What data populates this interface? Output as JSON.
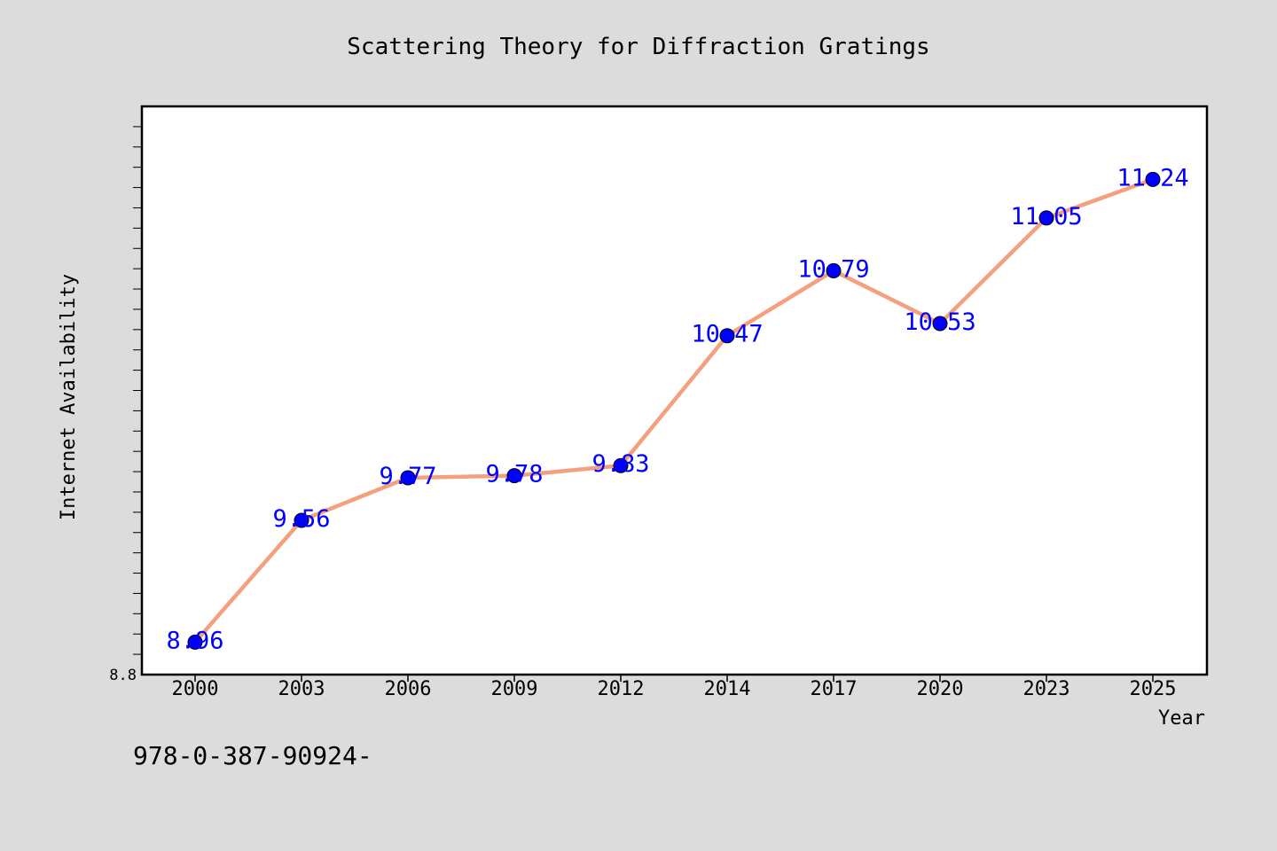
{
  "chart_data": {
    "type": "line",
    "title": "Scattering Theory for Diffraction Gratings",
    "xlabel": "Year",
    "ylabel": "Internet Availability",
    "categories": [
      "2000",
      "2003",
      "2006",
      "2009",
      "2012",
      "2014",
      "2017",
      "2020",
      "2023",
      "2025"
    ],
    "series": [
      {
        "values": [
          8.96,
          9.56,
          9.77,
          9.78,
          9.83,
          10.47,
          10.79,
          10.53,
          11.05,
          11.24
        ]
      }
    ],
    "ylim": [
      8.8,
      11.6
    ],
    "y_tick_labels": [
      "8.8"
    ],
    "grid": false,
    "legend": "none",
    "annotation": "978-0-387-90924-",
    "colors": {
      "background": "#dcdcdc",
      "plot_background": "#ffffff",
      "line": "#f4a07e",
      "marker": "#0000ff",
      "data_label": "#0000ff"
    }
  }
}
